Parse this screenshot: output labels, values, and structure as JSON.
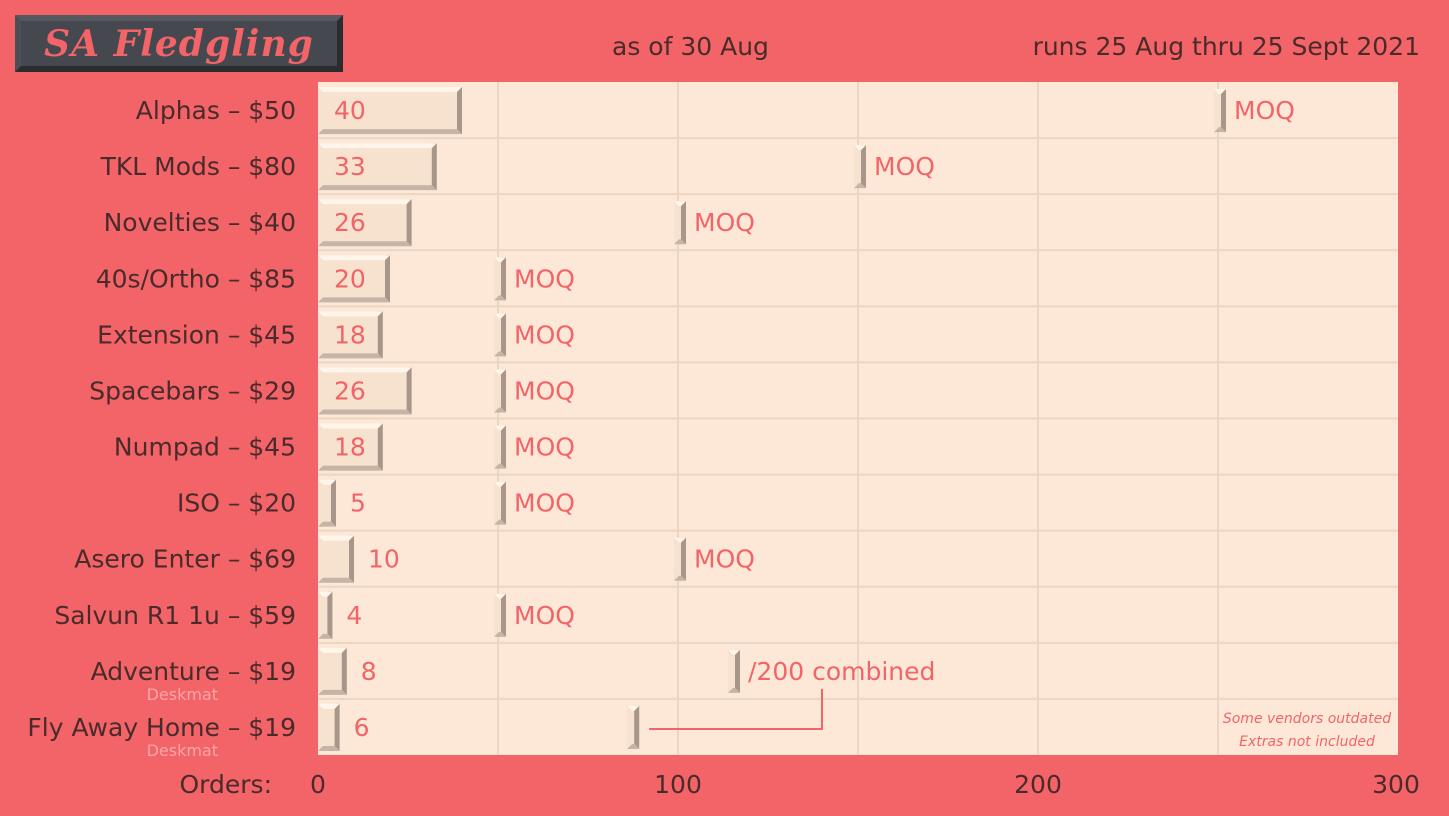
{
  "header": {
    "logo_text": "SA Fledgling",
    "as_of": "as of 30 Aug",
    "runs": "runs 25 Aug thru 25 Sept 2021"
  },
  "colors": {
    "background": "#f26468",
    "plot_background": "#fde8d7",
    "grid": "#ead6c3",
    "bar_face": "#f6e2ce",
    "bar_shadow": "#a9968a",
    "accent_text": "#f26468",
    "dark_text": "#4a2a2a"
  },
  "chart_data": {
    "type": "bar",
    "orientation": "horizontal",
    "xlabel": "Orders:",
    "xlim": [
      0,
      300
    ],
    "xticks": [
      0,
      100,
      200,
      300
    ],
    "grid": true,
    "categories": [
      "Alphas – $50",
      "TKL Mods – $80",
      "Novelties – $40",
      "40s/Ortho – $85",
      "Extension – $45",
      "Spacebars – $29",
      "Numpad – $45",
      "ISO – $20",
      "Asero Enter – $69",
      "Salvun R1 1u – $59",
      "Adventure – $19",
      "Fly Away Home – $19"
    ],
    "sublabels": [
      "",
      "",
      "",
      "",
      "",
      "",
      "",
      "",
      "",
      "",
      "Deskmat",
      "Deskmat"
    ],
    "values": [
      40,
      33,
      26,
      20,
      18,
      26,
      18,
      5,
      10,
      4,
      8,
      6
    ],
    "moq": [
      250,
      150,
      100,
      50,
      50,
      50,
      50,
      50,
      100,
      50,
      115,
      87
    ],
    "moq_labels": [
      "MOQ",
      "MOQ",
      "MOQ",
      "MOQ",
      "MOQ",
      "MOQ",
      "MOQ",
      "MOQ",
      "MOQ",
      "MOQ",
      "/200 combined",
      ""
    ],
    "notes": [
      "Some vendors outdated",
      "Extras not included"
    ]
  }
}
